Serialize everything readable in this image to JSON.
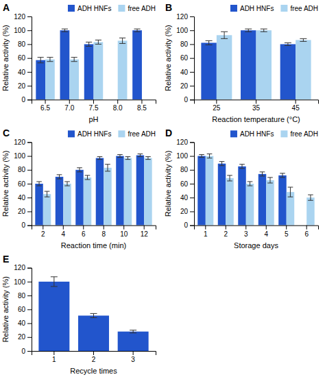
{
  "chart_data": [
    {
      "type": "bar",
      "title": "A",
      "xlabel": "pH",
      "ylabel": "Relative activity (%)",
      "categories": [
        "6.5",
        "7.0",
        "7.5",
        "8.0",
        "8.5"
      ],
      "series": [
        {
          "name": "ADH HNFs",
          "color": "#2255cc",
          "values": [
            57,
            100,
            80,
            0,
            100
          ],
          "errors": [
            4,
            2,
            3,
            0,
            2
          ]
        },
        {
          "name": "free ADH",
          "color": "#aad4f0",
          "values": [
            58,
            58,
            83,
            85,
            0
          ],
          "errors": [
            3,
            3,
            3,
            4,
            0
          ]
        }
      ],
      "ylim": [
        0,
        120
      ],
      "yticks": [
        0,
        20,
        40,
        60,
        80,
        100,
        120
      ],
      "legend": "upper right",
      "grid": false
    },
    {
      "type": "bar",
      "title": "B",
      "xlabel": "Reaction temperature (°C)",
      "ylabel": "Relative activity (%)",
      "categories": [
        "25",
        "35",
        "45"
      ],
      "series": [
        {
          "name": "ADH HNFs",
          "color": "#2255cc",
          "values": [
            82,
            100,
            80
          ],
          "errors": [
            3,
            2,
            2
          ]
        },
        {
          "name": "free ADH",
          "color": "#aad4f0",
          "values": [
            93,
            100,
            86
          ],
          "errors": [
            5,
            2,
            2
          ]
        }
      ],
      "ylim": [
        0,
        120
      ],
      "yticks": [
        0,
        20,
        40,
        60,
        80,
        100,
        120
      ],
      "legend": "upper right",
      "grid": false
    },
    {
      "type": "bar",
      "title": "C",
      "xlabel": "Reaction time (min)",
      "ylabel": "Relative activity (%)",
      "categories": [
        "2",
        "4",
        "6",
        "8",
        "10",
        "12"
      ],
      "series": [
        {
          "name": "ADH HNFs",
          "color": "#2255cc",
          "values": [
            60,
            70,
            80,
            97,
            100,
            101
          ],
          "errors": [
            3,
            3,
            3,
            2,
            2,
            2
          ]
        },
        {
          "name": "free ADH",
          "color": "#aad4f0",
          "values": [
            45,
            60,
            69,
            83,
            97,
            97
          ],
          "errors": [
            4,
            3,
            3,
            5,
            2,
            2
          ]
        }
      ],
      "ylim": [
        0,
        120
      ],
      "yticks": [
        0,
        20,
        40,
        60,
        80,
        100,
        120
      ],
      "legend": "upper right",
      "grid": false
    },
    {
      "type": "bar",
      "title": "D",
      "xlabel": "Storage days",
      "ylabel": "Relative activity (%)",
      "categories": [
        "1",
        "2",
        "3",
        "4",
        "5",
        "6"
      ],
      "series": [
        {
          "name": "ADH HNFs",
          "color": "#2255cc",
          "values": [
            100,
            89,
            85,
            74,
            72,
            0
          ],
          "errors": [
            2,
            3,
            3,
            3,
            3,
            0
          ]
        },
        {
          "name": "free ADH",
          "color": "#aad4f0",
          "values": [
            100,
            68,
            60,
            65,
            48,
            40
          ],
          "errors": [
            3,
            4,
            3,
            4,
            7,
            4
          ]
        }
      ],
      "ylim": [
        0,
        120
      ],
      "yticks": [
        0,
        20,
        40,
        60,
        80,
        100,
        120
      ],
      "legend": "upper right",
      "grid": false
    },
    {
      "type": "bar",
      "title": "E",
      "xlabel": "Recycle times",
      "ylabel": "Relative activity (%)",
      "categories": [
        "1",
        "2",
        "3"
      ],
      "color": "#2255cc",
      "values": [
        100,
        51,
        28
      ],
      "errors": [
        7,
        3,
        2
      ],
      "ylim": [
        0,
        120
      ],
      "yticks": [
        0,
        20,
        40,
        60,
        80,
        100,
        120
      ],
      "grid": false
    }
  ]
}
